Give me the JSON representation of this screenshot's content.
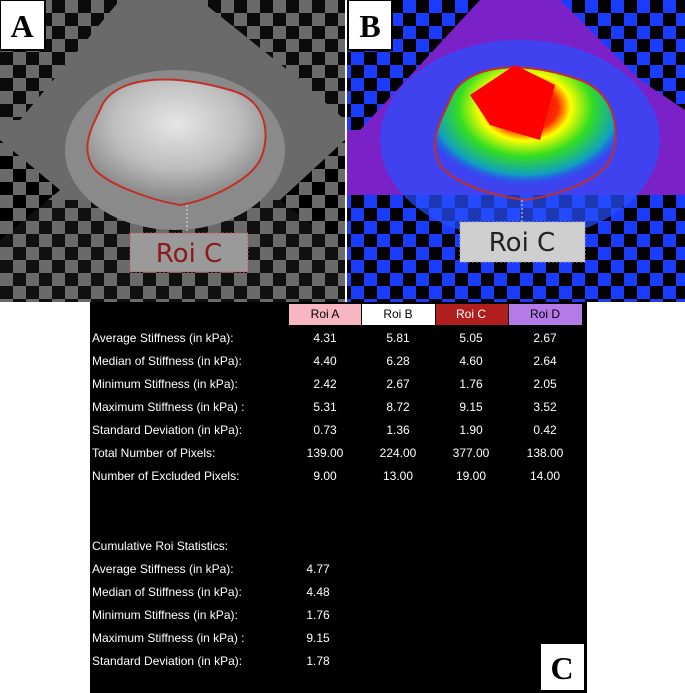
{
  "panels": {
    "a": {
      "label": "A",
      "roi_label": "Roi C"
    },
    "b": {
      "label": "B",
      "roi_label": "Roi C"
    },
    "c": {
      "label": "C"
    }
  },
  "table": {
    "columns": [
      "Roi A",
      "Roi B",
      "Roi C",
      "Roi D"
    ],
    "rows": [
      {
        "label": "Average Stiffness (in kPa):",
        "values": [
          "4.31",
          "5.81",
          "5.05",
          "2.67"
        ]
      },
      {
        "label": "Median of Stiffness (in kPa):",
        "values": [
          "4.40",
          "6.28",
          "4.60",
          "2.64"
        ]
      },
      {
        "label": "Minimum Stiffness (in kPa):",
        "values": [
          "2.42",
          "2.67",
          "1.76",
          "2.05"
        ]
      },
      {
        "label": "Maximum Stiffness (in kPa) :",
        "values": [
          "5.31",
          "8.72",
          "9.15",
          "3.52"
        ]
      },
      {
        "label": "Standard Deviation (in kPa):",
        "values": [
          "0.73",
          "1.36",
          "1.90",
          "0.42"
        ]
      },
      {
        "label": "Total Number of Pixels:",
        "values": [
          "139.00",
          "224.00",
          "377.00",
          "138.00"
        ]
      },
      {
        "label": "Number of Excluded Pixels:",
        "values": [
          "9.00",
          "13.00",
          "19.00",
          "14.00"
        ]
      }
    ]
  },
  "cumulative": {
    "title": "Cumulative Roi Statistics:",
    "rows": [
      {
        "label": "Average Stiffness (in kPa):",
        "value": "4.77"
      },
      {
        "label": "Median of Stiffness (in kPa):",
        "value": "4.48"
      },
      {
        "label": "Minimum Stiffness (in kPa):",
        "value": "1.76"
      },
      {
        "label": "Maximum Stiffness (in kPa) :",
        "value": "9.15"
      },
      {
        "label": "Standard Deviation (in kPa):",
        "value": "1.78"
      }
    ]
  }
}
